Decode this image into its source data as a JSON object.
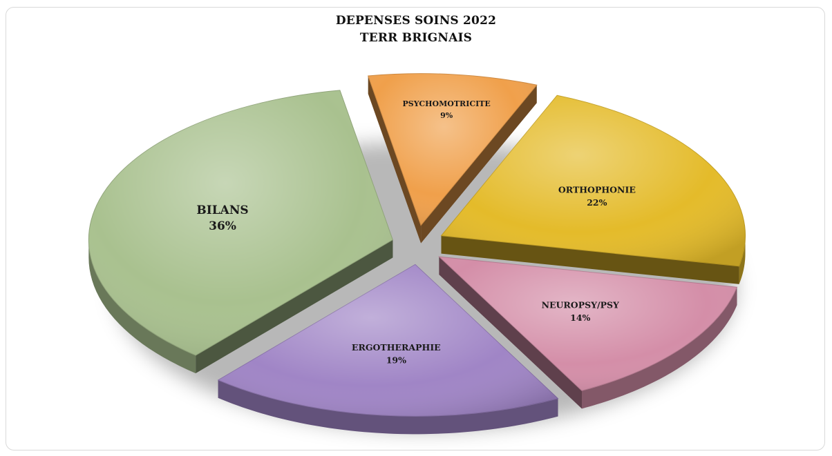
{
  "chart_data": {
    "type": "pie",
    "title_lines": [
      "DEPENSES SOINS 2022",
      "TERR BRIGNAIS"
    ],
    "slices": [
      {
        "label": "PSYCHOMOTRICITE",
        "value": 9,
        "value_label": "9%",
        "color": "#f0a04b"
      },
      {
        "label": "ORTHOPHONIE",
        "value": 22,
        "value_label": "22%",
        "color": "#e4bb2a"
      },
      {
        "label": "NEUROPSY/PSY",
        "value": 14,
        "value_label": "14%",
        "color": "#d48ea8"
      },
      {
        "label": "ERGOTHERAPHIE",
        "value": 19,
        "value_label": "19%",
        "color": "#a085c6"
      },
      {
        "label": "BILANS",
        "value": 36,
        "value_label": "36%",
        "color": "#a9c18f"
      }
    ],
    "exploded": true,
    "legend": "none"
  }
}
